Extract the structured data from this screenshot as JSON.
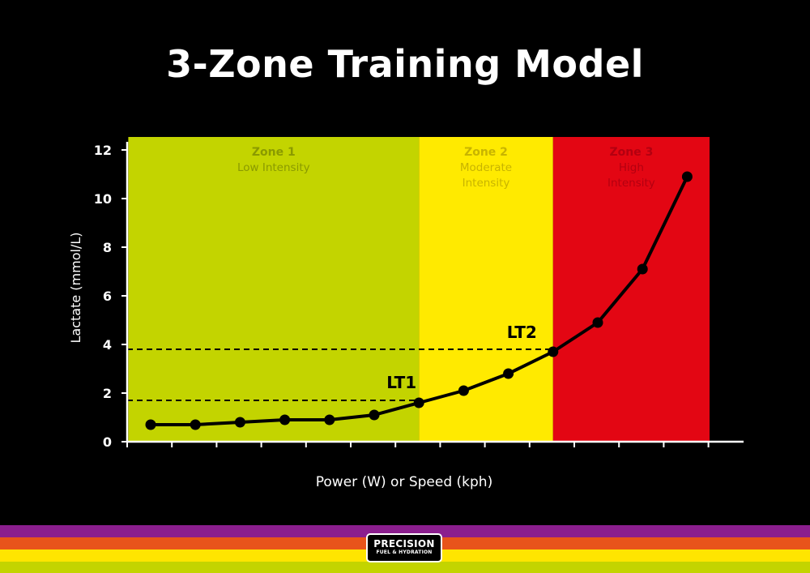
{
  "title": "3-Zone Training Model",
  "colors": {
    "background": "#000000",
    "zone1": "#c3d400",
    "zone2": "#ffea00",
    "zone3": "#e30613",
    "line": "#000000",
    "axis": "#ffffff",
    "stripes": [
      "#8b1e8e",
      "#e8541b",
      "#ffe500",
      "#c3d400"
    ]
  },
  "chart_data": {
    "type": "line",
    "xlabel": "Power (W) or Speed (kph)",
    "ylabel": "Lactate (mmol/L)",
    "ylim": [
      0,
      12
    ],
    "yticks": [
      0,
      2,
      4,
      6,
      8,
      10,
      12
    ],
    "x": [
      1,
      2,
      3,
      4,
      5,
      6,
      7,
      8,
      9,
      10,
      11,
      12,
      13
    ],
    "series": [
      {
        "values": [
          0.7,
          0.7,
          0.8,
          0.9,
          0.9,
          1.1,
          1.6,
          2.1,
          2.8,
          3.7,
          4.9,
          7.1,
          10.9
        ]
      }
    ],
    "zones": [
      {
        "name": "Zone 1",
        "desc": "Low Intensity",
        "from": 0.5,
        "to": 7.0,
        "color": "#c3d400",
        "text_color": "#8a9a00"
      },
      {
        "name": "Zone 2",
        "desc_lines": [
          "Moderate",
          "Intensity"
        ],
        "from": 7.0,
        "to": 10.0,
        "color": "#ffea00",
        "text_color": "#c8b400"
      },
      {
        "name": "Zone 3",
        "desc_lines": [
          "High",
          "Intensity"
        ],
        "from": 10.0,
        "to": 13.5,
        "color": "#e30613",
        "text_color": "#b30010"
      }
    ],
    "thresholds": [
      {
        "label": "LT1",
        "x": 7,
        "y": 1.7
      },
      {
        "label": "LT2",
        "x": 10,
        "y": 3.8
      }
    ],
    "grid": false
  },
  "logo": {
    "line1": "PRECISION",
    "line2": "FUEL & HYDRATION"
  }
}
